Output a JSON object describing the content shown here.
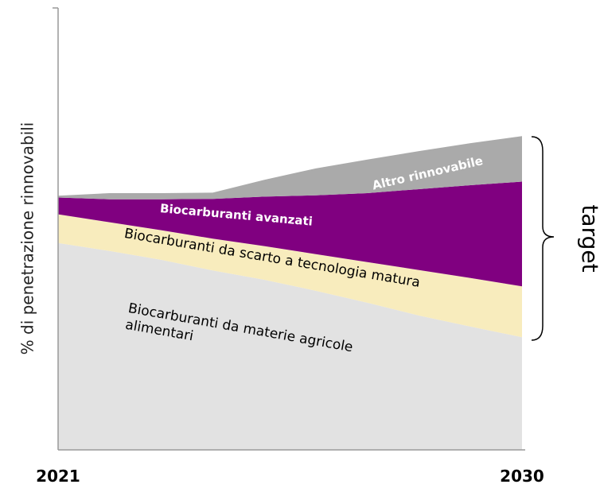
{
  "chart_data": {
    "type": "stacked_area",
    "y_label": "% di penetrazione rinnovabili",
    "categories": [
      "2021",
      null,
      null,
      null,
      null,
      null,
      null,
      null,
      null,
      "2030"
    ],
    "ylim": [
      0,
      100
    ],
    "annotations": [
      "target"
    ],
    "series": [
      {
        "name": "Biocarburanti da materie agricole alimentari",
        "color": "#e2e2e2",
        "values": [
          46.8,
          45.0,
          43.0,
          40.6,
          38.5,
          36.0,
          33.3,
          30.4,
          27.9,
          25.5
        ]
      },
      {
        "name": "Biocarburanti da scarto a tecnologia matura",
        "color": "#f8ecbd",
        "values": [
          6.5,
          6.5,
          6.7,
          7.2,
          7.6,
          8.3,
          9.2,
          10.3,
          11.0,
          11.5
        ]
      },
      {
        "name": "Biocarburanti avanzati",
        "color": "#800080",
        "values": [
          3.8,
          5.2,
          7.0,
          9.0,
          11.2,
          13.3,
          15.6,
          18.3,
          21.0,
          23.7
        ]
      },
      {
        "name": "Altro rinnovabile",
        "color": "#aaaaaa",
        "values": [
          0.4,
          1.4,
          1.4,
          1.4,
          3.8,
          6.1,
          7.6,
          8.6,
          9.5,
          10.3
        ]
      }
    ]
  }
}
